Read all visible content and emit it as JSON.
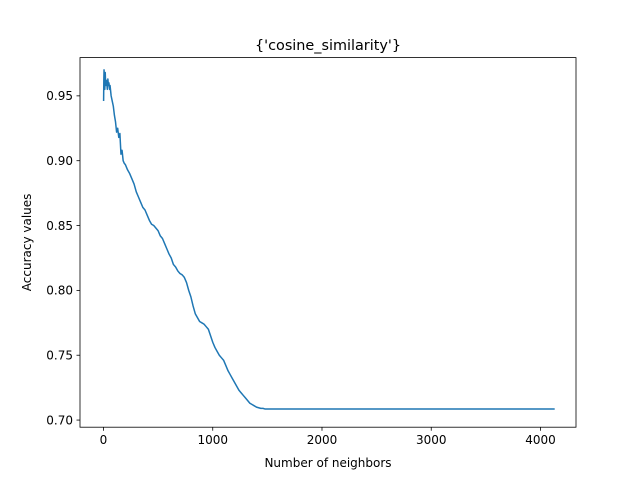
{
  "chart_data": {
    "type": "line",
    "title": "{'cosine_similarity'}",
    "xlabel": "Number of neighbors",
    "ylabel": "Accuracy values",
    "xlim": [
      -215,
      4325
    ],
    "ylim": [
      0.6945,
      0.9795
    ],
    "xticks": [
      0,
      1000,
      2000,
      3000,
      4000
    ],
    "xtick_labels": [
      "0",
      "1000",
      "2000",
      "3000",
      "4000"
    ],
    "yticks": [
      0.7,
      0.75,
      0.8,
      0.85,
      0.9,
      0.95
    ],
    "ytick_labels": [
      "0.70",
      "0.75",
      "0.80",
      "0.85",
      "0.90",
      "0.95"
    ],
    "grid": false,
    "legend": "none",
    "colors": {
      "line": "#1f77b4"
    },
    "series": [
      {
        "x": [
          1,
          3,
          5,
          8,
          12,
          16,
          20,
          25,
          30,
          35,
          40,
          45,
          50,
          55,
          60,
          70,
          80,
          90,
          100,
          110,
          120,
          130,
          140,
          150,
          160,
          170,
          180,
          190,
          200,
          220,
          240,
          260,
          280,
          300,
          320,
          340,
          360,
          380,
          400,
          420,
          440,
          460,
          480,
          500,
          520,
          540,
          560,
          580,
          600,
          620,
          640,
          660,
          680,
          700,
          720,
          740,
          760,
          780,
          800,
          820,
          840,
          860,
          880,
          900,
          920,
          940,
          960,
          980,
          1000,
          1020,
          1040,
          1060,
          1080,
          1100,
          1120,
          1140,
          1160,
          1180,
          1200,
          1220,
          1240,
          1260,
          1280,
          1300,
          1320,
          1340,
          1360,
          1380,
          1400,
          1420,
          1440,
          1460,
          1480,
          1500,
          1520,
          1540,
          1560,
          1580,
          1600,
          1630,
          1650,
          1700,
          2000,
          2500,
          3000,
          3500,
          4000,
          4130
        ],
        "y": [
          0.946,
          0.962,
          0.97,
          0.965,
          0.955,
          0.968,
          0.958,
          0.962,
          0.96,
          0.955,
          0.963,
          0.958,
          0.96,
          0.955,
          0.958,
          0.95,
          0.946,
          0.942,
          0.935,
          0.93,
          0.922,
          0.925,
          0.918,
          0.921,
          0.905,
          0.908,
          0.9,
          0.898,
          0.897,
          0.893,
          0.89,
          0.886,
          0.882,
          0.876,
          0.872,
          0.868,
          0.864,
          0.862,
          0.858,
          0.854,
          0.851,
          0.85,
          0.848,
          0.846,
          0.842,
          0.84,
          0.836,
          0.832,
          0.828,
          0.825,
          0.82,
          0.818,
          0.815,
          0.813,
          0.812,
          0.81,
          0.806,
          0.8,
          0.795,
          0.788,
          0.782,
          0.779,
          0.776,
          0.775,
          0.774,
          0.772,
          0.77,
          0.765,
          0.76,
          0.756,
          0.753,
          0.75,
          0.748,
          0.746,
          0.742,
          0.738,
          0.735,
          0.732,
          0.729,
          0.726,
          0.723,
          0.721,
          0.719,
          0.717,
          0.715,
          0.713,
          0.712,
          0.711,
          0.71,
          0.7095,
          0.709,
          0.709,
          0.7085,
          0.7085,
          0.7085,
          0.7085,
          0.7085,
          0.7085,
          0.7085,
          0.7085,
          0.7085,
          0.7085,
          0.7085,
          0.7085,
          0.7085,
          0.7085,
          0.7085,
          0.7085
        ]
      }
    ]
  }
}
